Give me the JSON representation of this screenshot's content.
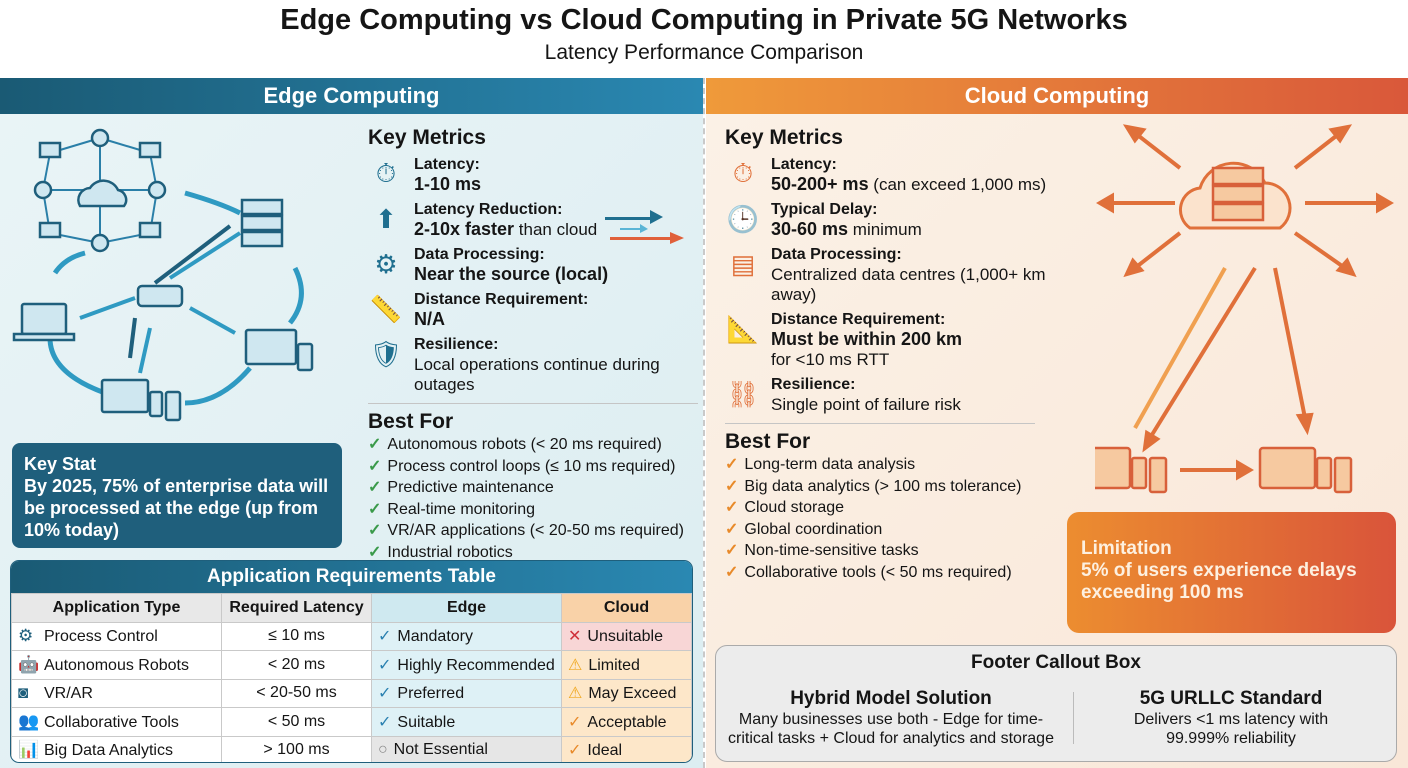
{
  "title": "Edge Computing vs Cloud Computing in Private 5G Networks",
  "subtitle": "Latency Performance Comparison",
  "colors": {
    "edge": "#1f5f7c",
    "cloud": "#e0703a"
  },
  "edge": {
    "header": "Edge Computing",
    "key_metrics_title": "Key Metrics",
    "metrics": [
      {
        "icon": "stopwatch-icon",
        "label": "Latency:",
        "value_bold": "1-10 ms",
        "value_rest": ""
      },
      {
        "icon": "arrow-up-icon",
        "label": "Latency Reduction:",
        "value_bold": "2-10x faster",
        "value_rest": " than cloud"
      },
      {
        "icon": "gear-icon",
        "label": "Data Processing:",
        "value_bold": "Near the source (local)",
        "value_rest": ""
      },
      {
        "icon": "ruler-icon",
        "label": "Distance Requirement:",
        "value_bold": "N/A",
        "value_rest": ""
      },
      {
        "icon": "shield-icon",
        "label": "Resilience:",
        "value_bold": "",
        "value_rest": "Local operations continue during outages"
      }
    ],
    "best_for_title": "Best For",
    "best_for": [
      "Autonomous robots (< 20 ms required)",
      "Process control loops (≤ 10 ms required)",
      "Predictive maintenance",
      "Real-time monitoring",
      "VR/AR applications (< 20-50 ms required)",
      "Industrial robotics"
    ],
    "key_stat": {
      "title": "Key Stat",
      "text": "By 2025, 75% of enterprise data will be processed at the edge (up from 10% today)"
    }
  },
  "cloud": {
    "header": "Cloud Computing",
    "key_metrics_title": "Key Metrics",
    "metrics": [
      {
        "icon": "stopwatch-icon",
        "label": "Latency:",
        "value_bold": "50-200+ ms",
        "value_rest": " (can exceed 1,000 ms)"
      },
      {
        "icon": "clock-icon",
        "label": "Typical Delay:",
        "value_bold": "30-60 ms",
        "value_rest": " minimum"
      },
      {
        "icon": "server-icon",
        "label": "Data Processing:",
        "value_bold": "",
        "value_rest": "Centralized data centres (1,000+ km away)"
      },
      {
        "icon": "ruler-check-icon",
        "label": "Distance Requirement:",
        "value_bold": "Must be within 200 km",
        "value_rest": "for <10 ms RTT"
      },
      {
        "icon": "broken-link-icon",
        "label": "Resilience:",
        "value_bold": "",
        "value_rest": "Single point of failure risk"
      }
    ],
    "best_for_title": "Best For",
    "best_for": [
      "Long-term data analysis",
      "Big data analytics (> 100 ms tolerance)",
      "Cloud storage",
      "Global coordination",
      "Non-time-sensitive tasks",
      "Collaborative tools (< 50 ms required)"
    ],
    "limitation": {
      "title": "Limitation",
      "text": "5% of users experience delays exceeding 100 ms"
    }
  },
  "table": {
    "title": "Application Requirements Table",
    "headers": [
      "Application Type",
      "Required Latency",
      "Edge",
      "Cloud"
    ],
    "rows": [
      {
        "icon": "gear-icon",
        "app": "Process Control",
        "latency": "≤ 10 ms",
        "edge_mark": "✓",
        "edge": "Mandatory",
        "cloud_mark": "✕",
        "cloud": "Unsuitable"
      },
      {
        "icon": "robot-icon",
        "app": "Autonomous Robots",
        "latency": "< 20 ms",
        "edge_mark": "✓",
        "edge": "Highly Recommended",
        "cloud_mark": "⚠",
        "cloud": "Limited"
      },
      {
        "icon": "vr-headset-icon",
        "app": "VR/AR",
        "latency": "< 20-50 ms",
        "edge_mark": "✓",
        "edge": "Preferred",
        "cloud_mark": "⚠",
        "cloud": "May Exceed"
      },
      {
        "icon": "users-icon",
        "app": "Collaborative Tools",
        "latency": "< 50 ms",
        "edge_mark": "✓",
        "edge": "Suitable",
        "cloud_mark": "✓",
        "cloud": "Acceptable"
      },
      {
        "icon": "chart-icon",
        "app": "Big Data Analytics",
        "latency": "> 100 ms",
        "edge_mark": "○",
        "edge": "Not Essential",
        "cloud_mark": "✓",
        "cloud": "Ideal"
      }
    ]
  },
  "footer": {
    "title": "Footer Callout Box",
    "hybrid": {
      "title": "Hybrid Model Solution",
      "text": "Many businesses use both - Edge for time-critical tasks + Cloud for analytics and storage"
    },
    "urllc": {
      "title": "5G URLLC Standard",
      "text": "Delivers <1 ms latency with 99.999% reliability"
    }
  }
}
